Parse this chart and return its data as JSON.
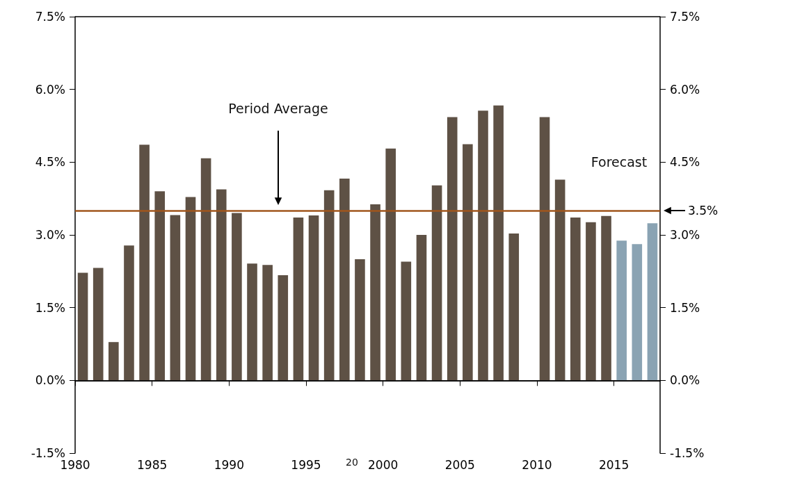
{
  "chart_data": {
    "type": "bar",
    "x": [
      1980,
      1981,
      1982,
      1983,
      1984,
      1985,
      1986,
      1987,
      1988,
      1989,
      1990,
      1991,
      1992,
      1993,
      1994,
      1995,
      1996,
      1997,
      1998,
      1999,
      2000,
      2001,
      2002,
      2003,
      2004,
      2005,
      2006,
      2007,
      2008,
      2009,
      2010,
      2011,
      2012,
      2013,
      2014,
      2015,
      2016,
      2017
    ],
    "series": [
      {
        "color": "#5e5145",
        "values": [
          2.22,
          2.32,
          0.79,
          2.78,
          4.86,
          3.9,
          3.41,
          3.78,
          4.58,
          3.94,
          3.45,
          2.41,
          2.38,
          2.17,
          3.36,
          3.4,
          3.92,
          4.16,
          2.5,
          3.63,
          4.78,
          2.45,
          3.0,
          4.02,
          5.43,
          4.87,
          5.56,
          5.67,
          3.03,
          null,
          5.43,
          4.14,
          3.36,
          3.26,
          3.39,
          null,
          null,
          null
        ]
      },
      {
        "color": "#8aa3b3",
        "values": [
          null,
          null,
          null,
          null,
          null,
          null,
          null,
          null,
          null,
          null,
          null,
          null,
          null,
          null,
          null,
          null,
          null,
          null,
          null,
          null,
          null,
          null,
          null,
          null,
          null,
          null,
          null,
          null,
          null,
          null,
          null,
          null,
          null,
          null,
          null,
          2.88,
          2.81,
          3.24
        ]
      }
    ],
    "xlim": [
      1980,
      2018
    ],
    "xticks": [
      1980,
      1985,
      1990,
      1995,
      2000,
      2005,
      2010,
      2015
    ],
    "ylim": [
      -1.5,
      7.5
    ],
    "yticks": [
      {
        "value": -1.5,
        "label": "-1.5%"
      },
      {
        "value": 0,
        "label": "0.0%"
      },
      {
        "value": 1.5,
        "label": "1.5%"
      },
      {
        "value": 3,
        "label": "3.0%"
      },
      {
        "value": 4.5,
        "label": "4.5%"
      },
      {
        "value": 6,
        "label": "6.0%"
      },
      {
        "value": 7.5,
        "label": "7.5%"
      }
    ],
    "y2lim": [
      -1.5,
      7.5
    ],
    "y2ticks": [
      {
        "value": -1.5,
        "label": "-1.5%"
      },
      {
        "value": 0,
        "label": "0.0%"
      },
      {
        "value": 1.5,
        "label": "1.5%"
      },
      {
        "value": 3,
        "label": "3.0%"
      },
      {
        "value": 4.5,
        "label": "4.5%"
      },
      {
        "value": 6,
        "label": "6.0%"
      },
      {
        "value": 7.5,
        "label": "7.5%"
      }
    ],
    "ref_lines": [
      {
        "axis": "y",
        "value": 0,
        "color": "#000000"
      },
      {
        "axis": "y",
        "value": 3.5,
        "label": "3.5%",
        "color": "#a0561c"
      }
    ],
    "annotations": [
      "Period Average",
      "Forecast",
      "20"
    ],
    "grid": false
  }
}
